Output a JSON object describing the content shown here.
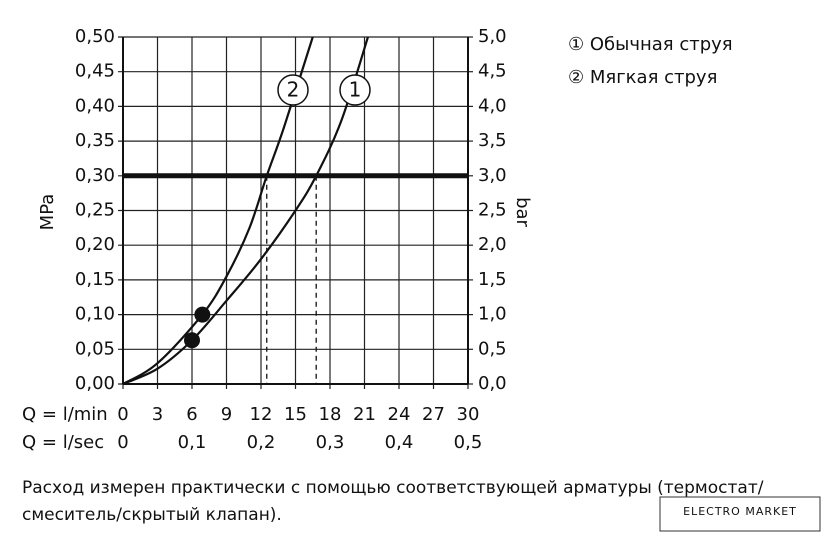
{
  "chart_data": {
    "type": "line",
    "y_label": "MPa",
    "y2_label": "bar",
    "x_label": "Q = l/min",
    "x2_label": "Q = l/sec",
    "xlim": [
      0,
      30
    ],
    "xticks": [
      0,
      3,
      6,
      9,
      12,
      15,
      18,
      21,
      24,
      27,
      30
    ],
    "x2lim": [
      0,
      0.5
    ],
    "x2ticks": [
      0,
      {
        "value": 0.1,
        "label": "0,1"
      },
      {
        "value": 0.2,
        "label": "0,2"
      },
      {
        "value": 0.3,
        "label": "0,3"
      },
      {
        "value": 0.4,
        "label": "0,4"
      },
      {
        "value": 0.5,
        "label": "0,5"
      }
    ],
    "ylim": [
      0,
      0.5
    ],
    "yticks": [
      {
        "value": 0,
        "label": "0,00"
      },
      {
        "value": 0.05,
        "label": "0,05"
      },
      {
        "value": 0.1,
        "label": "0,10"
      },
      {
        "value": 0.15,
        "label": "0,15"
      },
      {
        "value": 0.2,
        "label": "0,20"
      },
      {
        "value": 0.25,
        "label": "0,25"
      },
      {
        "value": 0.3,
        "label": "0,30"
      },
      {
        "value": 0.35,
        "label": "0,35"
      },
      {
        "value": 0.4,
        "label": "0,40"
      },
      {
        "value": 0.45,
        "label": "0,45"
      },
      {
        "value": 0.5,
        "label": "0,50"
      }
    ],
    "y2lim": [
      0,
      5
    ],
    "y2ticks": [
      {
        "value": 0,
        "label": "0,0"
      },
      {
        "value": 0.5,
        "label": "0,5"
      },
      {
        "value": 1,
        "label": "1,0"
      },
      {
        "value": 1.5,
        "label": "1,5"
      },
      {
        "value": 2,
        "label": "2,0"
      },
      {
        "value": 2.5,
        "label": "2,5"
      },
      {
        "value": 3,
        "label": "3,0"
      },
      {
        "value": 3.5,
        "label": "3,5"
      },
      {
        "value": 4,
        "label": "4,0"
      },
      {
        "value": 4.5,
        "label": "4,5"
      },
      {
        "value": 5,
        "label": "5,0"
      }
    ],
    "grid": true,
    "reference_pressure": 0.3,
    "reference_flows": [
      12.5,
      16.8
    ],
    "series": [
      {
        "name": "① Обычная струя",
        "label": "1",
        "color": "#111111",
        "x": [
          0,
          3,
          6,
          9,
          12,
          15,
          16.8,
          19,
          21.3
        ],
        "values": [
          0,
          0.022,
          0.063,
          0.12,
          0.18,
          0.25,
          0.3,
          0.38,
          0.5
        ]
      },
      {
        "name": "② Мягкая струя",
        "label": "2",
        "color": "#111111",
        "x": [
          0,
          3,
          6.9,
          9,
          11,
          12.5,
          14,
          16.5
        ],
        "values": [
          0,
          0.03,
          0.1,
          0.155,
          0.225,
          0.3,
          0.37,
          0.5
        ]
      }
    ],
    "markers": {
      "x": [
        6,
        6.9
      ],
      "values": [
        0.063,
        0.1
      ]
    }
  },
  "footnote": [
    "Расход измерен практически с помощью соответствующей арматуры (термостат/",
    "смеситель/скрытый клапан)."
  ],
  "watermark": "ELECTRO MARKET"
}
